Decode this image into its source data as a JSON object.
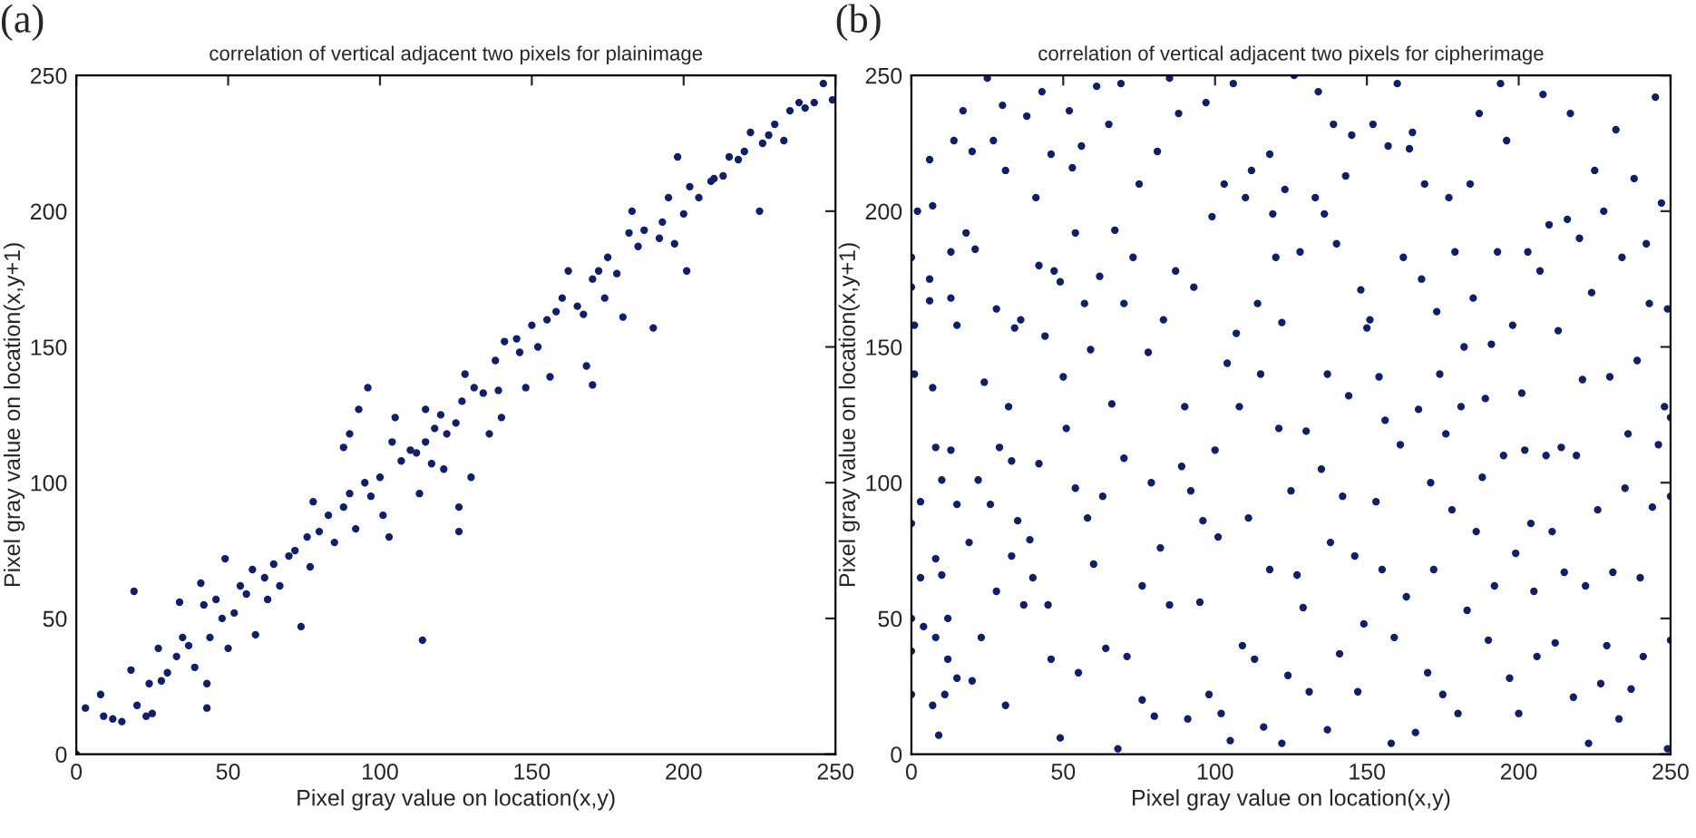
{
  "chart_data": [
    {
      "type": "scatter",
      "title": "correlation of vertical adjacent two pixels for plainimage",
      "xlabel": "Pixel gray value on location(x,y)",
      "ylabel": "Pixel gray value on location(x,y+1)",
      "annotations": [
        "(a)"
      ],
      "marker": "circle",
      "grid": false,
      "legend": false,
      "xlim": [
        0,
        250
      ],
      "ylim": [
        0,
        250
      ],
      "xticks": [
        0,
        50,
        100,
        150,
        200,
        250
      ],
      "yticks": [
        0,
        50,
        100,
        150,
        200,
        250
      ],
      "series": [
        {
          "color": "#0d1f6d",
          "x": [
            0,
            3,
            8,
            9,
            12,
            15,
            18,
            19,
            20,
            23,
            25,
            24,
            27,
            28,
            30,
            33,
            34,
            35,
            37,
            39,
            41,
            42,
            43,
            43,
            44,
            46,
            48,
            49,
            50,
            52,
            54,
            56,
            58,
            59,
            62,
            63,
            65,
            67,
            70,
            72,
            74,
            76,
            77,
            78,
            80,
            83,
            85,
            88,
            88,
            90,
            90,
            92,
            93,
            95,
            96,
            97,
            100,
            101,
            103,
            104,
            105,
            107,
            110,
            112,
            113,
            114,
            115,
            115,
            117,
            118,
            120,
            121,
            122,
            125,
            126,
            126,
            127,
            128,
            130,
            131,
            134,
            136,
            138,
            139,
            140,
            141,
            145,
            146,
            148,
            150,
            152,
            155,
            156,
            158,
            160,
            162,
            165,
            167,
            168,
            170,
            170,
            172,
            174,
            175,
            178,
            180,
            182,
            183,
            185,
            187,
            190,
            192,
            193,
            195,
            197,
            198,
            200,
            201,
            202,
            205,
            209,
            210,
            213,
            215,
            218,
            220,
            222,
            225,
            226,
            228,
            230,
            233,
            235,
            238,
            240,
            243,
            246,
            249
          ],
          "values": [
            0,
            17,
            22,
            14,
            13,
            12,
            31,
            60,
            18,
            14,
            15,
            26,
            39,
            27,
            30,
            36,
            56,
            43,
            40,
            32,
            63,
            55,
            17,
            26,
            43,
            57,
            50,
            72,
            39,
            52,
            62,
            59,
            68,
            44,
            65,
            57,
            70,
            62,
            73,
            75,
            47,
            80,
            69,
            93,
            82,
            88,
            78,
            91,
            113,
            96,
            118,
            83,
            127,
            100,
            135,
            95,
            102,
            88,
            80,
            115,
            124,
            108,
            112,
            111,
            96,
            42,
            127,
            115,
            107,
            120,
            125,
            105,
            118,
            122,
            91,
            82,
            130,
            140,
            102,
            135,
            133,
            118,
            145,
            134,
            124,
            152,
            153,
            148,
            135,
            158,
            150,
            160,
            139,
            163,
            168,
            178,
            165,
            162,
            143,
            136,
            175,
            178,
            168,
            183,
            177,
            161,
            192,
            200,
            187,
            193,
            157,
            190,
            196,
            205,
            188,
            220,
            199,
            178,
            209,
            205,
            211,
            212,
            213,
            220,
            219,
            222,
            229,
            200,
            225,
            228,
            232,
            226,
            237,
            240,
            238,
            240,
            247,
            241
          ]
        }
      ]
    },
    {
      "type": "scatter",
      "title": "correlation of vertical adjacent two pixels for cipherimage",
      "xlabel": "Pixel gray value on location(x,y)",
      "ylabel": "Pixel gray value on location(x,y+1)",
      "annotations": [
        "(b)"
      ],
      "marker": "circle",
      "grid": false,
      "legend": false,
      "xlim": [
        0,
        250
      ],
      "ylim": [
        0,
        250
      ],
      "xticks": [
        0,
        50,
        100,
        150,
        200,
        250
      ],
      "yticks": [
        0,
        50,
        100,
        150,
        200,
        250
      ],
      "series": [
        {
          "color": "#0d1f6d",
          "x": [
            0,
            0,
            0,
            0,
            0,
            0,
            1,
            1,
            2,
            3,
            3,
            4,
            6,
            6,
            6,
            7,
            7,
            7,
            8,
            8,
            8,
            9,
            10,
            10,
            11,
            12,
            12,
            13,
            13,
            13,
            14,
            15,
            15,
            15,
            17,
            18,
            19,
            20,
            20,
            21,
            22,
            23,
            24,
            25,
            26,
            27,
            28,
            28,
            29,
            30,
            31,
            31,
            32,
            33,
            33,
            34,
            35,
            36,
            37,
            38,
            39,
            40,
            41,
            42,
            42,
            43,
            44,
            45,
            46,
            46,
            47,
            49,
            49,
            50,
            51,
            52,
            53,
            54,
            54,
            55,
            56,
            57,
            58,
            59,
            60,
            61,
            62,
            63,
            64,
            65,
            66,
            67,
            68,
            69,
            70,
            70,
            71,
            73,
            75,
            76,
            76,
            78,
            79,
            80,
            81,
            82,
            83,
            85,
            85,
            87,
            88,
            89,
            90,
            91,
            92,
            93,
            95,
            96,
            97,
            98,
            99,
            100,
            101,
            102,
            103,
            104,
            105,
            106,
            107,
            108,
            109,
            110,
            111,
            112,
            113,
            114,
            115,
            116,
            118,
            118,
            119,
            120,
            121,
            122,
            122,
            123,
            124,
            125,
            126,
            127,
            128,
            129,
            130,
            131,
            133,
            134,
            135,
            136,
            137,
            137,
            138,
            139,
            140,
            141,
            142,
            143,
            144,
            145,
            146,
            147,
            148,
            149,
            150,
            151,
            152,
            153,
            154,
            155,
            156,
            157,
            158,
            159,
            160,
            161,
            162,
            163,
            164,
            165,
            166,
            167,
            168,
            169,
            170,
            171,
            172,
            173,
            174,
            175,
            176,
            177,
            178,
            179,
            180,
            181,
            182,
            183,
            184,
            185,
            186,
            187,
            188,
            189,
            190,
            191,
            192,
            193,
            194,
            195,
            196,
            197,
            198,
            199,
            200,
            201,
            202,
            203,
            204,
            205,
            206,
            207,
            208,
            209,
            210,
            211,
            212,
            213,
            214,
            215,
            216,
            217,
            218,
            219,
            220,
            221,
            222,
            223,
            224,
            225,
            226,
            227,
            228,
            229,
            230,
            231,
            232,
            233,
            234,
            235,
            236,
            237,
            238,
            239,
            240,
            241,
            242,
            243,
            244,
            245,
            246,
            247,
            248,
            249,
            249,
            250,
            250,
            250
          ],
          "values": [
            183,
            172,
            85,
            50,
            38,
            22,
            158,
            140,
            200,
            93,
            65,
            47,
            219,
            175,
            167,
            202,
            135,
            18,
            113,
            72,
            43,
            7,
            101,
            66,
            22,
            50,
            35,
            185,
            168,
            112,
            226,
            158,
            92,
            28,
            237,
            192,
            78,
            222,
            27,
            186,
            101,
            43,
            137,
            249,
            92,
            226,
            164,
            60,
            113,
            239,
            215,
            18,
            128,
            108,
            73,
            157,
            86,
            160,
            55,
            235,
            79,
            65,
            205,
            180,
            107,
            244,
            154,
            55,
            221,
            35,
            178,
            174,
            6,
            139,
            120,
            237,
            216,
            192,
            98,
            30,
            224,
            166,
            87,
            149,
            70,
            246,
            176,
            95,
            39,
            232,
            129,
            193,
            2,
            247,
            166,
            109,
            36,
            183,
            210,
            62,
            20,
            148,
            100,
            14,
            222,
            76,
            160,
            55,
            249,
            178,
            236,
            106,
            128,
            13,
            97,
            172,
            56,
            86,
            240,
            22,
            198,
            112,
            80,
            15,
            210,
            144,
            5,
            247,
            155,
            128,
            40,
            205,
            87,
            215,
            35,
            166,
            140,
            10,
            221,
            68,
            199,
            183,
            120,
            159,
            4,
            208,
            29,
            97,
            250,
            66,
            185,
            54,
            119,
            23,
            205,
            244,
            105,
            199,
            140,
            9,
            78,
            232,
            188,
            37,
            95,
            213,
            132,
            228,
            73,
            23,
            171,
            48,
            157,
            160,
            232,
            93,
            139,
            68,
            123,
            224,
            4,
            43,
            247,
            114,
            183,
            58,
            223,
            229,
            8,
            127,
            175,
            210,
            30,
            100,
            68,
            163,
            140,
            22,
            118,
            205,
            90,
            185,
            15,
            128,
            150,
            53,
            210,
            168,
            82,
            236,
            102,
            131,
            42,
            151,
            62,
            185,
            247,
            110,
            226,
            28,
            158,
            74,
            15,
            133,
            112,
            185,
            85,
            60,
            36,
            178,
            243,
            110,
            195,
            82,
            41,
            156,
            113,
            67,
            197,
            236,
            21,
            110,
            190,
            138,
            62,
            4,
            170,
            215,
            90,
            26,
            200,
            40,
            139,
            67,
            230,
            13,
            183,
            98,
            118,
            24,
            212,
            145,
            65,
            36,
            188,
            166,
            91,
            242,
            114,
            203,
            128,
            164,
            2,
            124,
            95,
            42
          ]
        }
      ]
    }
  ]
}
